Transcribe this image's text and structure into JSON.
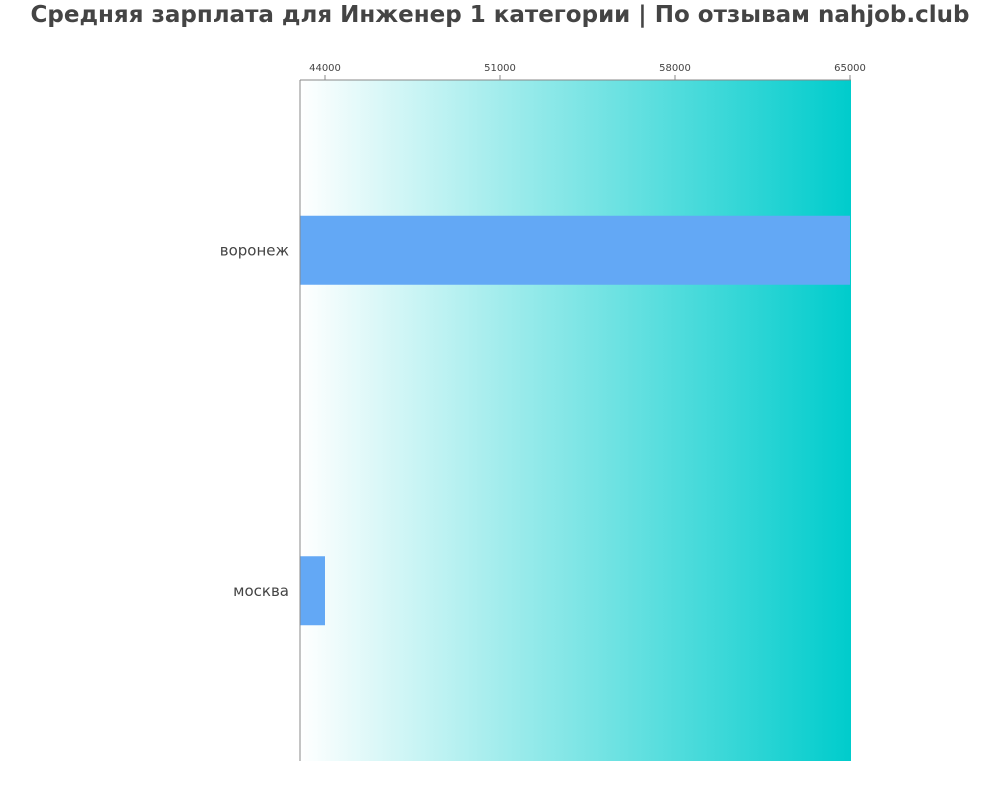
{
  "chart_data": {
    "type": "bar",
    "orientation": "horizontal",
    "title": "Средняя зарплата для Инженер 1 категории | По отзывам nahjob.club",
    "categories": [
      "воронеж",
      "москва"
    ],
    "values": [
      65000,
      44000
    ],
    "xlim": [
      43000,
      65000
    ],
    "x_ticks": [
      44000,
      51000,
      58000,
      65000
    ],
    "x_tick_labels": [
      "44000",
      "51000",
      "58000",
      "65000"
    ],
    "axis_position": "top",
    "grid": false,
    "bar_color": "#63a8f5",
    "background_gradient": [
      "#ffffff",
      "#00cccc"
    ],
    "text_color": "#444444"
  }
}
